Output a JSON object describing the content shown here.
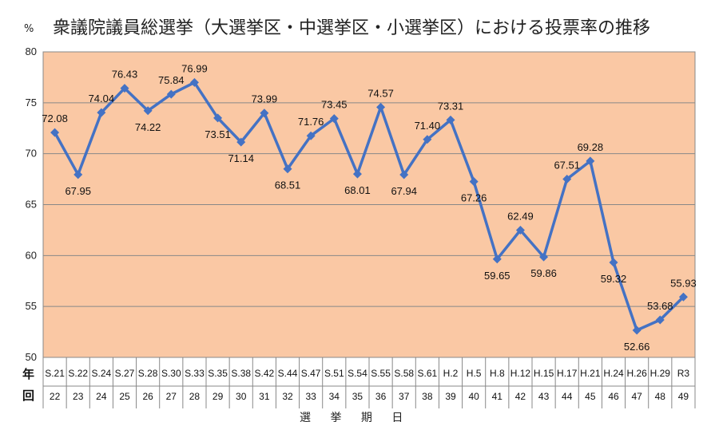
{
  "chart_data": {
    "type": "line",
    "title": "衆議院議員総選挙（大選挙区・中選挙区・小選挙区）における投票率の推移",
    "unit": "%",
    "xlabel": "選 挙 期 日",
    "row_headers": [
      "年",
      "回"
    ],
    "ylim": [
      50,
      80
    ],
    "yticks": [
      50,
      55,
      60,
      65,
      70,
      75,
      80
    ],
    "grid": true,
    "legend": "none",
    "colors": {
      "line": "#4472C4",
      "background": "#FAC8A4",
      "grid": "#888888"
    },
    "categories": [
      "S.21",
      "S.22",
      "S.24",
      "S.27",
      "S.28",
      "S.30",
      "S.33",
      "S.35",
      "S.38",
      "S.42",
      "S.44",
      "S.47",
      "S.51",
      "S.54",
      "S.55",
      "S.58",
      "S.61",
      "H.2",
      "H.5",
      "H.8",
      "H.12",
      "H.15",
      "H.17",
      "H.21",
      "H.24",
      "H.26",
      "H.29",
      "R3"
    ],
    "sessions": [
      "22",
      "23",
      "24",
      "25",
      "26",
      "27",
      "28",
      "29",
      "30",
      "31",
      "32",
      "33",
      "34",
      "35",
      "36",
      "37",
      "38",
      "39",
      "40",
      "41",
      "42",
      "43",
      "44",
      "45",
      "46",
      "47",
      "48",
      "49"
    ],
    "values": [
      72.08,
      67.95,
      74.04,
      76.43,
      74.22,
      75.84,
      76.99,
      73.51,
      71.14,
      73.99,
      68.51,
      71.76,
      73.45,
      68.01,
      74.57,
      67.94,
      71.4,
      73.31,
      67.26,
      59.65,
      62.49,
      59.86,
      67.51,
      69.28,
      59.32,
      52.66,
      53.68,
      55.93
    ],
    "value_labels": [
      "72.08",
      "67.95",
      "74.04",
      "76.43",
      "74.22",
      "75.84",
      "76.99",
      "73.51",
      "71.14",
      "73.99",
      "68.51",
      "71.76",
      "73.45",
      "68.01",
      "74.57",
      "67.94",
      "71.40",
      "73.31",
      "67.26",
      "59.65",
      "62.49",
      "59.86",
      "67.51",
      "69.28",
      "59.32",
      "52.66",
      "53.68",
      "55.93"
    ]
  }
}
